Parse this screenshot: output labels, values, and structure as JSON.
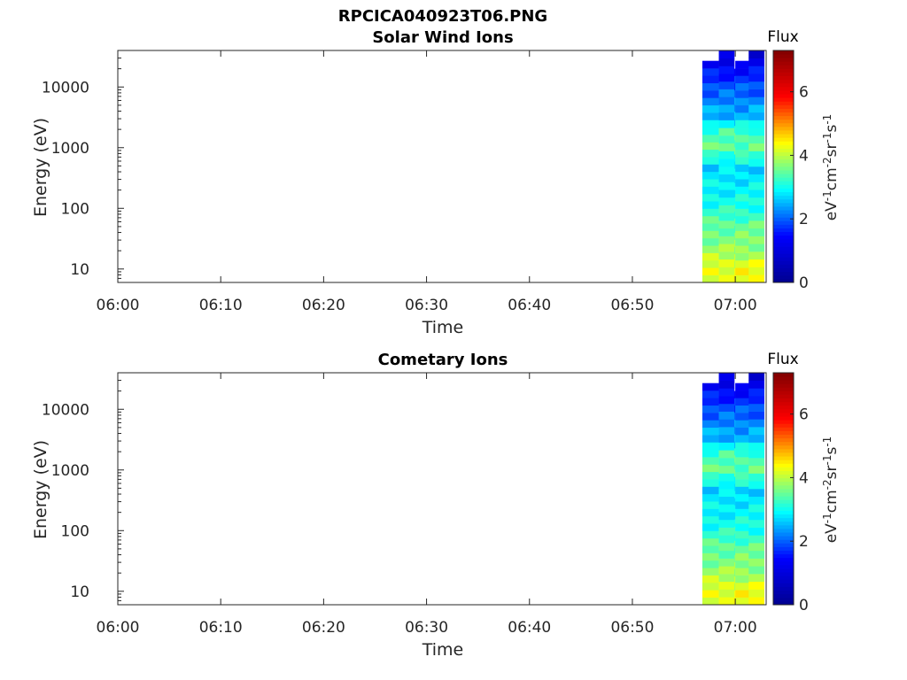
{
  "figure_title": "RPCICA040923T06.PNG",
  "colormap": [
    "#00008f",
    "#0000ff",
    "#00ffff",
    "#ffff00",
    "#ff0000",
    "#800000"
  ],
  "chart_data": [
    {
      "type": "heatmap",
      "title": "Solar Wind Ions",
      "xlabel": "Time",
      "ylabel": "Energy (eV)",
      "yscale": "log",
      "xlim": [
        "06:00",
        "07:03"
      ],
      "ylim": [
        6,
        40000
      ],
      "xticks": [
        "06:00",
        "06:10",
        "06:20",
        "06:30",
        "06:40",
        "06:50",
        "07:00"
      ],
      "yticks": [
        "10",
        "100",
        "1000",
        "10000"
      ],
      "colorbar": {
        "title": "Flux",
        "unit": "eV-1cm-2sr-1s-1",
        "ticks": [
          "0",
          "2",
          "4",
          "6"
        ],
        "range": [
          0,
          7.3
        ]
      },
      "data_time_start": "06:56.8",
      "data_time_end": "07:02.8",
      "columns": [
        {
          "t0": "06:56.8",
          "t1": "06:58.4",
          "top": 27000
        },
        {
          "t0": "06:58.4",
          "t1": "06:59.9",
          "top": 40000
        },
        {
          "t0": "06:59.9",
          "t1": "07:00.0",
          "top": 20000
        },
        {
          "t0": "07:00.0",
          "t1": "07:01.3",
          "top": 27000
        },
        {
          "t0": "07:01.3",
          "t1": "07:02.8",
          "top": 40000
        }
      ],
      "flux_profile": [
        {
          "energy": 10,
          "flux": 4.3
        },
        {
          "energy": 20,
          "flux": 3.8
        },
        {
          "energy": 50,
          "flux": 3.5
        },
        {
          "energy": 100,
          "flux": 3.1
        },
        {
          "energy": 200,
          "flux": 2.9
        },
        {
          "energy": 500,
          "flux": 2.7
        },
        {
          "energy": 900,
          "flux": 3.5
        },
        {
          "energy": 1800,
          "flux": 3.3
        },
        {
          "energy": 3000,
          "flux": 2.6
        },
        {
          "energy": 6000,
          "flux": 2.2
        },
        {
          "energy": 15000,
          "flux": 1.7
        },
        {
          "energy": 30000,
          "flux": 1.0
        }
      ]
    },
    {
      "type": "heatmap",
      "title": "Cometary Ions",
      "xlabel": "Time",
      "ylabel": "Energy (eV)",
      "yscale": "log",
      "xlim": [
        "06:00",
        "07:03"
      ],
      "ylim": [
        6,
        40000
      ],
      "xticks": [
        "06:00",
        "06:10",
        "06:20",
        "06:30",
        "06:40",
        "06:50",
        "07:00"
      ],
      "yticks": [
        "10",
        "100",
        "1000",
        "10000"
      ],
      "colorbar": {
        "title": "Flux",
        "unit": "eV-1cm-2sr-1s-1",
        "ticks": [
          "0",
          "2",
          "4",
          "6"
        ],
        "range": [
          0,
          7.3
        ]
      },
      "data_time_start": "06:56.8",
      "data_time_end": "07:02.8",
      "columns": [
        {
          "t0": "06:56.8",
          "t1": "06:58.4",
          "top": 27000
        },
        {
          "t0": "06:58.4",
          "t1": "06:59.9",
          "top": 40000
        },
        {
          "t0": "06:59.9",
          "t1": "07:00.0",
          "top": 20000
        },
        {
          "t0": "07:00.0",
          "t1": "07:01.3",
          "top": 27000
        },
        {
          "t0": "07:01.3",
          "t1": "07:02.8",
          "top": 40000
        }
      ],
      "flux_profile": [
        {
          "energy": 10,
          "flux": 4.3
        },
        {
          "energy": 20,
          "flux": 3.8
        },
        {
          "energy": 50,
          "flux": 3.5
        },
        {
          "energy": 100,
          "flux": 3.1
        },
        {
          "energy": 200,
          "flux": 2.9
        },
        {
          "energy": 500,
          "flux": 2.7
        },
        {
          "energy": 900,
          "flux": 3.5
        },
        {
          "energy": 1800,
          "flux": 3.3
        },
        {
          "energy": 3000,
          "flux": 2.6
        },
        {
          "energy": 6000,
          "flux": 2.2
        },
        {
          "energy": 15000,
          "flux": 1.7
        },
        {
          "energy": 30000,
          "flux": 1.0
        }
      ]
    }
  ]
}
